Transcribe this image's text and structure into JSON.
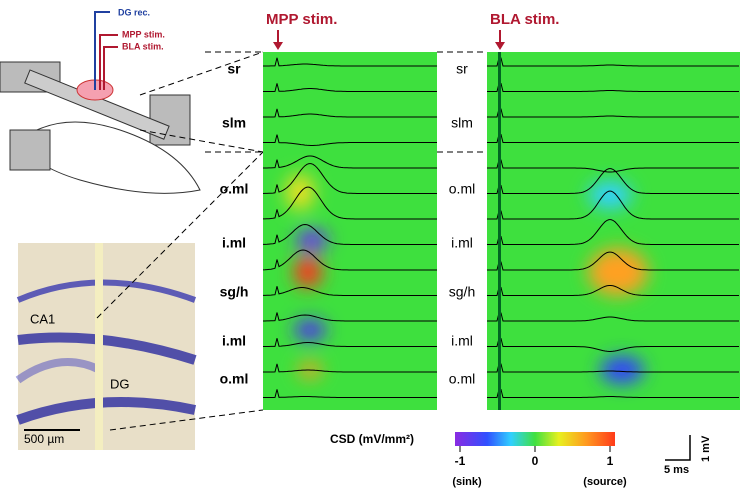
{
  "schematic": {
    "labels": [
      "DG rec.",
      "MPP stim.",
      "BLA stim."
    ]
  },
  "histology": {
    "labels": [
      "CA1",
      "DG"
    ],
    "scale_bar": "500 µm"
  },
  "panels": [
    {
      "stim_label": "MPP stim.",
      "layers": [
        "sr",
        "slm",
        "o.ml",
        "i.ml",
        "sg/h",
        "i.ml",
        "o.ml"
      ]
    },
    {
      "stim_label": "BLA stim.",
      "layers": [
        "sr",
        "slm",
        "o.ml",
        "i.ml",
        "sg/h",
        "i.ml",
        "o.ml"
      ]
    }
  ],
  "colorbar": {
    "title": "CSD (mV/mm²)",
    "ticks": [
      -1,
      0,
      1
    ],
    "end_labels": [
      "(sink)",
      "(source)"
    ]
  },
  "scale_bar": {
    "time": "5 ms",
    "voltage": "1 mV"
  }
}
